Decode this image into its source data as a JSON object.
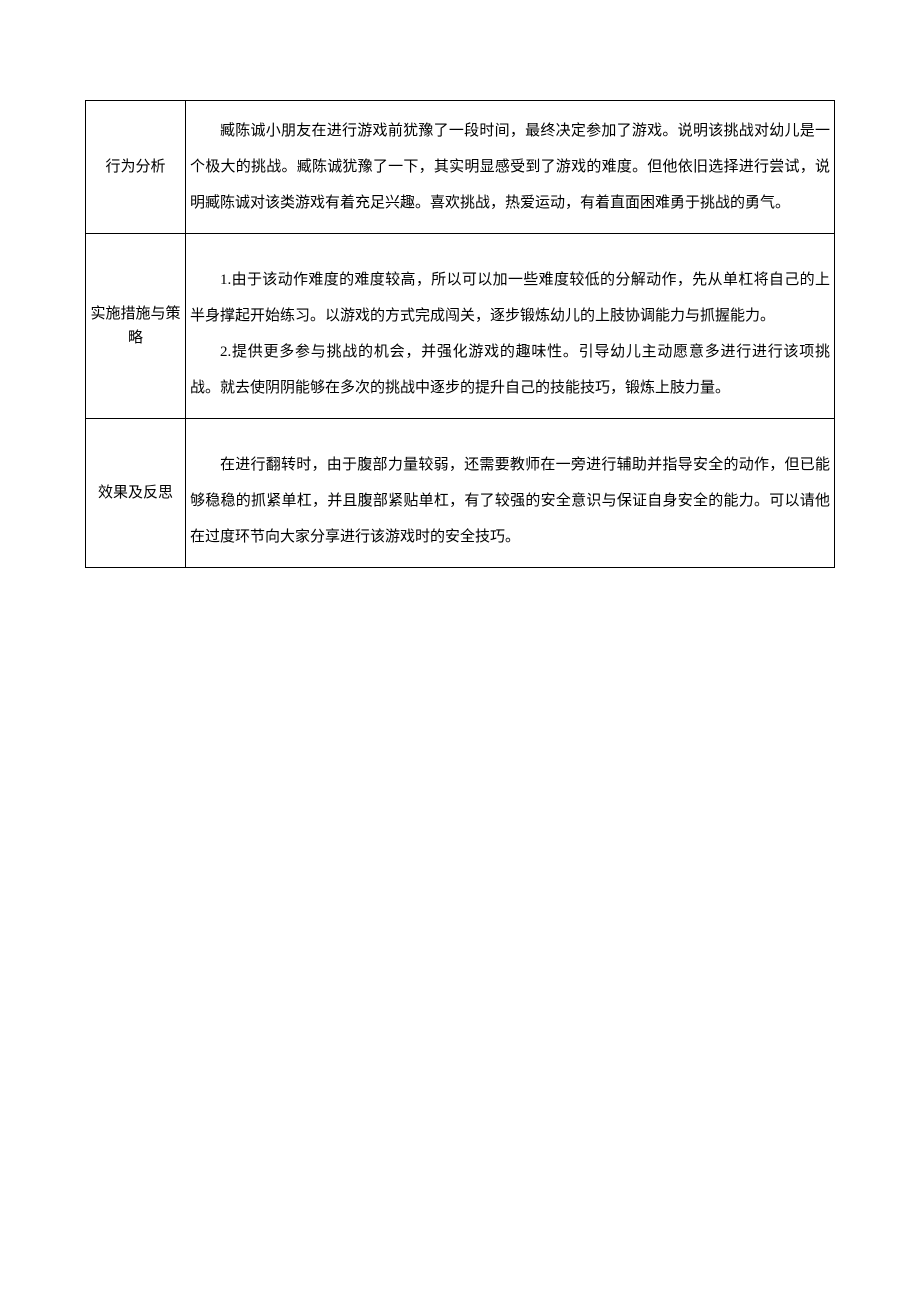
{
  "table": {
    "border_color": "#000000",
    "background_color": "#ffffff",
    "font_family": "SimSun",
    "label_fontsize": 15,
    "content_fontsize": 15,
    "line_height": 2.4,
    "column_widths": [
      "100px",
      "auto"
    ],
    "rows": [
      {
        "label": "行为分析",
        "paragraphs": [
          "臧陈诚小朋友在进行游戏前犹豫了一段时间，最终决定参加了游戏。说明该挑战对幼儿是一个极大的挑战。臧陈诚犹豫了一下，其实明显感受到了游戏的难度。但他依旧选择进行尝试，说明臧陈诚对该类游戏有着充足兴趣。喜欢挑战，热爱运动，有着直面困难勇于挑战的勇气。"
        ]
      },
      {
        "label": "实施措施与策略",
        "paragraphs": [
          "1.由于该动作难度的难度较高，所以可以加一些难度较低的分解动作，先从单杠将自己的上半身撑起开始练习。以游戏的方式完成闯关，逐步锻炼幼儿的上肢协调能力与抓握能力。",
          "2.提供更多参与挑战的机会，并强化游戏的趣味性。引导幼儿主动愿意多进行进行该项挑战。就去使阴阴能够在多次的挑战中逐步的提升自己的技能技巧，锻炼上肢力量。"
        ]
      },
      {
        "label": "效果及反思",
        "paragraphs": [
          "在进行翻转时，由于腹部力量较弱，还需要教师在一旁进行辅助并指导安全的动作，但已能够稳稳的抓紧单杠，并且腹部紧贴单杠，有了较强的安全意识与保证自身安全的能力。可以请他在过度环节向大家分享进行该游戏时的安全技巧。"
        ]
      }
    ]
  }
}
